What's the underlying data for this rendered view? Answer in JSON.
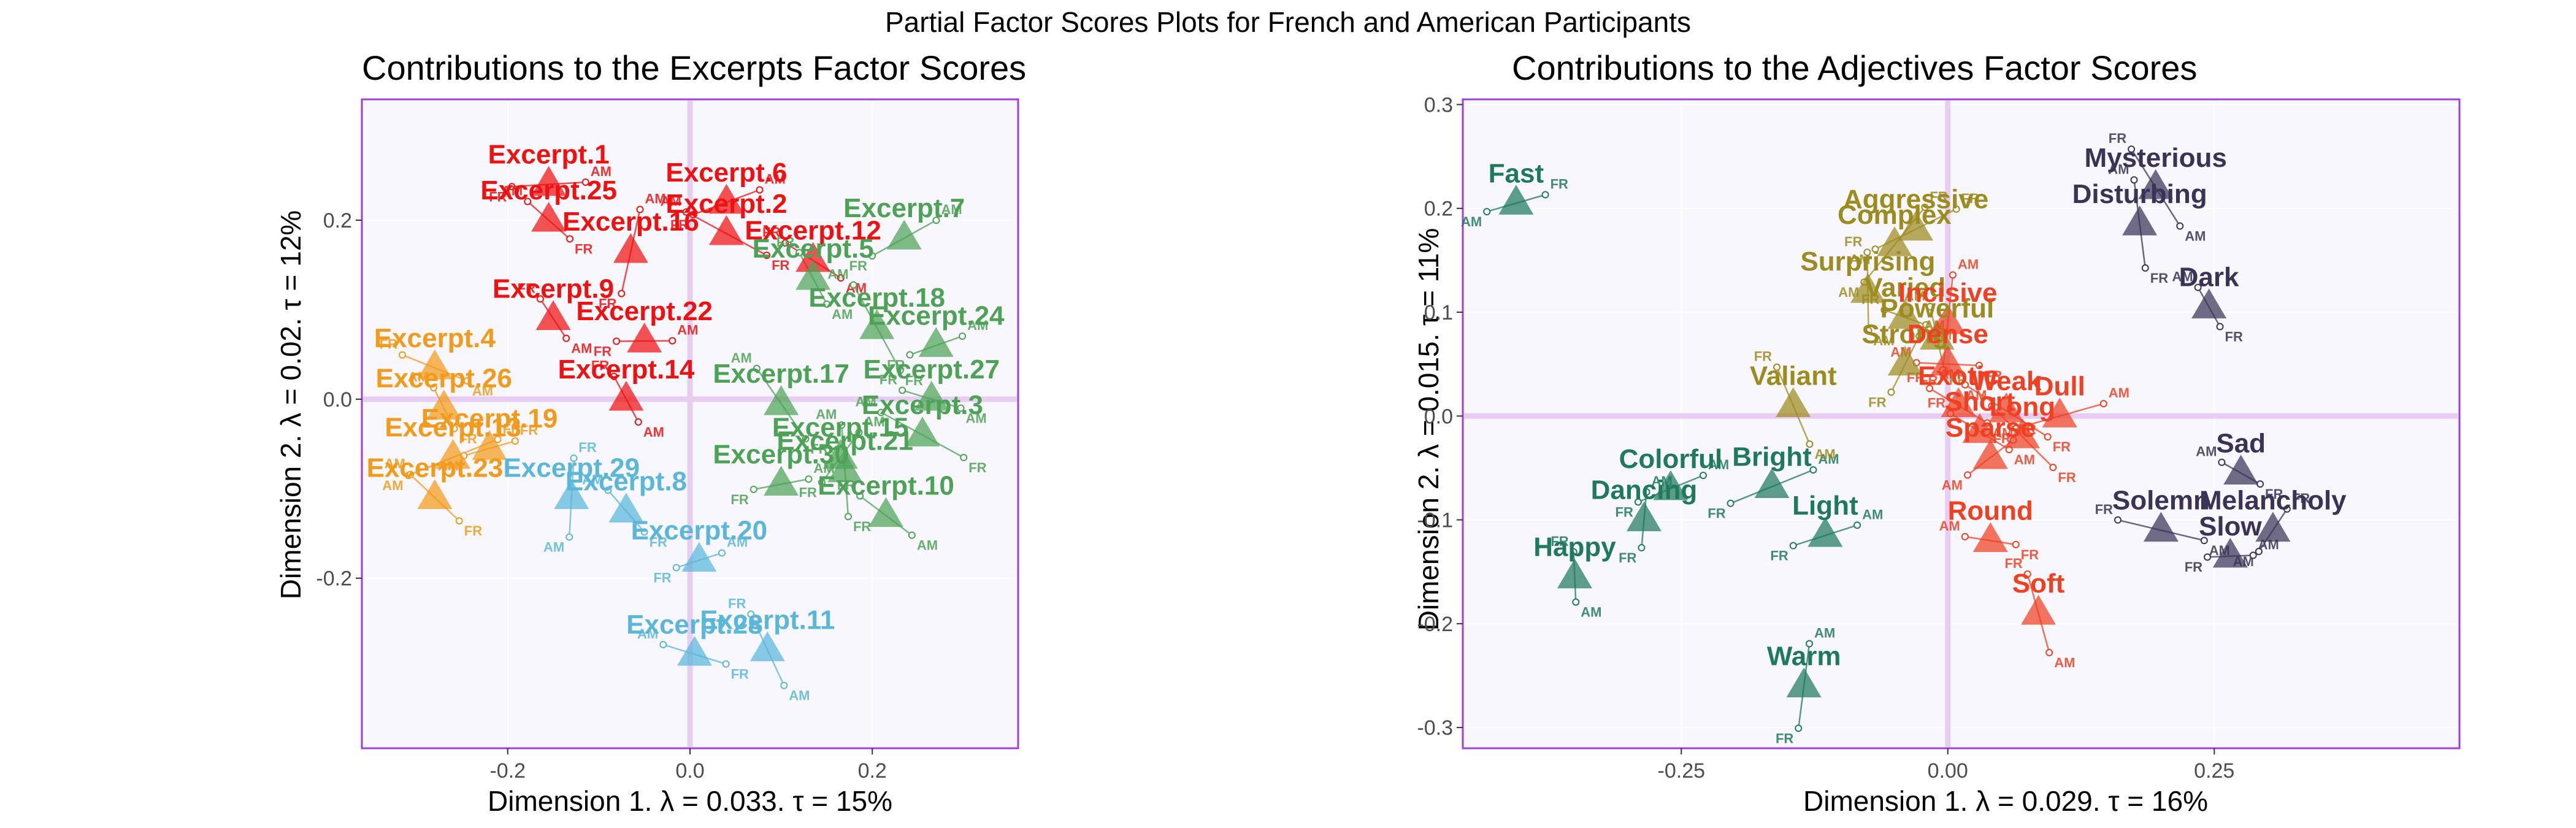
{
  "main_title": "Partial Factor Scores Plots for French and American Participants",
  "colors": {
    "panel_bg": "#f8f7fd",
    "panel_border": "#a13fd9",
    "zero_line": "#e7cdf1",
    "grid": "#ffffff",
    "red": "#ee1111",
    "orange": "#f29a1b",
    "green": "#4ea256",
    "cyan": "#5ab7d9",
    "olive": "#9c8b1e",
    "orangered": "#ef4021",
    "teal": "#1f7a5c",
    "navy": "#3a3356"
  },
  "chart_data": [
    {
      "type": "scatter",
      "title": "Contributions to the Excerpts Factor Scores",
      "xlabel": "Dimension 1.   λ = 0.033.  τ = 15%",
      "ylabel": "Dimension 2.   λ = 0.02.  τ = 12%",
      "xlim": [
        -0.36,
        0.36
      ],
      "ylim": [
        -0.39,
        0.335
      ],
      "xticks": [
        {
          "v": -0.2,
          "label": "-0.2"
        },
        {
          "v": 0.0,
          "label": "0.0"
        },
        {
          "v": 0.2,
          "label": "0.2"
        }
      ],
      "yticks": [
        {
          "v": 0.2,
          "label": "0.2"
        },
        {
          "v": 0.0,
          "label": "0.0"
        },
        {
          "v": -0.2,
          "label": "-0.2"
        }
      ],
      "partial_labels": {
        "fr": "FR",
        "am": "AM"
      },
      "points": [
        {
          "label": "Excerpt.1",
          "x": -0.155,
          "y": 0.24,
          "color": "red"
        },
        {
          "label": "Excerpt.25",
          "x": -0.155,
          "y": 0.2,
          "color": "red"
        },
        {
          "label": "Excerpt.6",
          "x": 0.04,
          "y": 0.22,
          "color": "red"
        },
        {
          "label": "Excerpt.2",
          "x": 0.04,
          "y": 0.185,
          "color": "red"
        },
        {
          "label": "Excerpt.12",
          "x": 0.135,
          "y": 0.155,
          "color": "red"
        },
        {
          "label": "Excerpt.16",
          "x": -0.065,
          "y": 0.165,
          "color": "red"
        },
        {
          "label": "Excerpt.9",
          "x": -0.15,
          "y": 0.09,
          "color": "red"
        },
        {
          "label": "Excerpt.22",
          "x": -0.05,
          "y": 0.065,
          "color": "red"
        },
        {
          "label": "Excerpt.14",
          "x": -0.07,
          "y": 0.0,
          "color": "red"
        },
        {
          "label": "Excerpt.4",
          "x": -0.28,
          "y": 0.035,
          "color": "orange"
        },
        {
          "label": "Excerpt.26",
          "x": -0.27,
          "y": -0.01,
          "color": "orange"
        },
        {
          "label": "Excerpt.13",
          "x": -0.26,
          "y": -0.065,
          "color": "orange"
        },
        {
          "label": "Excerpt.23",
          "x": -0.28,
          "y": -0.11,
          "color": "orange"
        },
        {
          "label": "Excerpt.19",
          "x": -0.22,
          "y": -0.055,
          "color": "orange"
        },
        {
          "label": "Excerpt.7",
          "x": 0.235,
          "y": 0.18,
          "color": "green"
        },
        {
          "label": "Excerpt.5",
          "x": 0.135,
          "y": 0.135,
          "color": "green"
        },
        {
          "label": "Excerpt.18",
          "x": 0.205,
          "y": 0.08,
          "color": "green"
        },
        {
          "label": "Excerpt.24",
          "x": 0.27,
          "y": 0.06,
          "color": "green"
        },
        {
          "label": "Excerpt.27",
          "x": 0.265,
          "y": 0.0,
          "color": "green"
        },
        {
          "label": "Excerpt.17",
          "x": 0.1,
          "y": -0.005,
          "color": "green"
        },
        {
          "label": "Excerpt.15",
          "x": 0.165,
          "y": -0.065,
          "color": "green"
        },
        {
          "label": "Excerpt.3",
          "x": 0.255,
          "y": -0.04,
          "color": "green"
        },
        {
          "label": "Excerpt.21",
          "x": 0.17,
          "y": -0.08,
          "color": "green"
        },
        {
          "label": "Excerpt.30",
          "x": 0.1,
          "y": -0.095,
          "color": "green"
        },
        {
          "label": "Excerpt.10",
          "x": 0.215,
          "y": -0.13,
          "color": "green"
        },
        {
          "label": "Excerpt.29",
          "x": -0.13,
          "y": -0.11,
          "color": "cyan"
        },
        {
          "label": "Excerpt.8",
          "x": -0.07,
          "y": -0.125,
          "color": "cyan"
        },
        {
          "label": "Excerpt.20",
          "x": 0.01,
          "y": -0.18,
          "color": "cyan"
        },
        {
          "label": "Excerpt.28",
          "x": 0.005,
          "y": -0.285,
          "color": "cyan"
        },
        {
          "label": "Excerpt.11",
          "x": 0.085,
          "y": -0.28,
          "color": "cyan"
        }
      ]
    },
    {
      "type": "scatter",
      "title": "Contributions to the Adjectives Factor Scores",
      "xlabel": "Dimension 1.   λ = 0.029.  τ = 16%",
      "ylabel": "Dimension 2.   λ = 0.015.  τ = 11%",
      "xlim": [
        -0.455,
        0.48
      ],
      "ylim": [
        -0.32,
        0.305
      ],
      "xticks": [
        {
          "v": -0.25,
          "label": "-0.25"
        },
        {
          "v": 0.0,
          "label": "0.00"
        },
        {
          "v": 0.25,
          "label": "0.25"
        }
      ],
      "yticks": [
        {
          "v": 0.3,
          "label": "0.3"
        },
        {
          "v": 0.2,
          "label": "0.2"
        },
        {
          "v": 0.1,
          "label": "0.1"
        },
        {
          "v": 0.0,
          "label": "0.0"
        },
        {
          "v": -0.1,
          "label": "-0.1"
        },
        {
          "v": -0.2,
          "label": "-0.2"
        },
        {
          "v": -0.3,
          "label": "-0.3"
        }
      ],
      "partial_labels": {
        "fr": "FR",
        "am": "AM"
      },
      "points": [
        {
          "label": "Fast",
          "x": -0.405,
          "y": 0.205,
          "color": "teal"
        },
        {
          "label": "Colorful",
          "x": -0.26,
          "y": -0.07,
          "color": "teal"
        },
        {
          "label": "Bright",
          "x": -0.165,
          "y": -0.068,
          "color": "teal"
        },
        {
          "label": "Light",
          "x": -0.115,
          "y": -0.115,
          "color": "teal"
        },
        {
          "label": "Dancing",
          "x": -0.285,
          "y": -0.1,
          "color": "teal"
        },
        {
          "label": "Happy",
          "x": -0.35,
          "y": -0.155,
          "color": "teal"
        },
        {
          "label": "Warm",
          "x": -0.135,
          "y": -0.26,
          "color": "teal"
        },
        {
          "label": "Complex",
          "x": -0.05,
          "y": 0.165,
          "color": "olive"
        },
        {
          "label": "Aggressive",
          "x": -0.03,
          "y": 0.18,
          "color": "olive"
        },
        {
          "label": "Surprising",
          "x": -0.075,
          "y": 0.12,
          "color": "olive"
        },
        {
          "label": "Varied",
          "x": -0.04,
          "y": 0.095,
          "color": "olive"
        },
        {
          "label": "Strong",
          "x": -0.04,
          "y": 0.05,
          "color": "olive"
        },
        {
          "label": "Powerful",
          "x": -0.01,
          "y": 0.075,
          "color": "olive"
        },
        {
          "label": "Valiant",
          "x": -0.145,
          "y": 0.01,
          "color": "olive"
        },
        {
          "label": "Incisive",
          "x": 0.0,
          "y": 0.09,
          "color": "orangered"
        },
        {
          "label": "Dense",
          "x": 0.0,
          "y": 0.05,
          "color": "orangered"
        },
        {
          "label": "Exotic",
          "x": 0.01,
          "y": 0.01,
          "color": "orangered"
        },
        {
          "label": "Weak",
          "x": 0.055,
          "y": 0.005,
          "color": "orangered"
        },
        {
          "label": "Dull",
          "x": 0.105,
          "y": 0.0,
          "color": "orangered"
        },
        {
          "label": "Short",
          "x": 0.03,
          "y": -0.015,
          "color": "orangered"
        },
        {
          "label": "Long",
          "x": 0.07,
          "y": -0.02,
          "color": "orangered"
        },
        {
          "label": "Sparse",
          "x": 0.04,
          "y": -0.04,
          "color": "orangered"
        },
        {
          "label": "Round",
          "x": 0.04,
          "y": -0.12,
          "color": "orangered"
        },
        {
          "label": "Soft",
          "x": 0.085,
          "y": -0.19,
          "color": "orangered"
        },
        {
          "label": "Mysterious",
          "x": 0.195,
          "y": 0.22,
          "color": "navy"
        },
        {
          "label": "Disturbing",
          "x": 0.18,
          "y": 0.185,
          "color": "navy"
        },
        {
          "label": "Dark",
          "x": 0.245,
          "y": 0.105,
          "color": "navy"
        },
        {
          "label": "Sad",
          "x": 0.275,
          "y": -0.055,
          "color": "navy"
        },
        {
          "label": "Solemn",
          "x": 0.2,
          "y": -0.11,
          "color": "navy"
        },
        {
          "label": "Melancholy",
          "x": 0.305,
          "y": -0.11,
          "color": "navy"
        },
        {
          "label": "Slow",
          "x": 0.265,
          "y": -0.135,
          "color": "navy"
        }
      ]
    }
  ]
}
